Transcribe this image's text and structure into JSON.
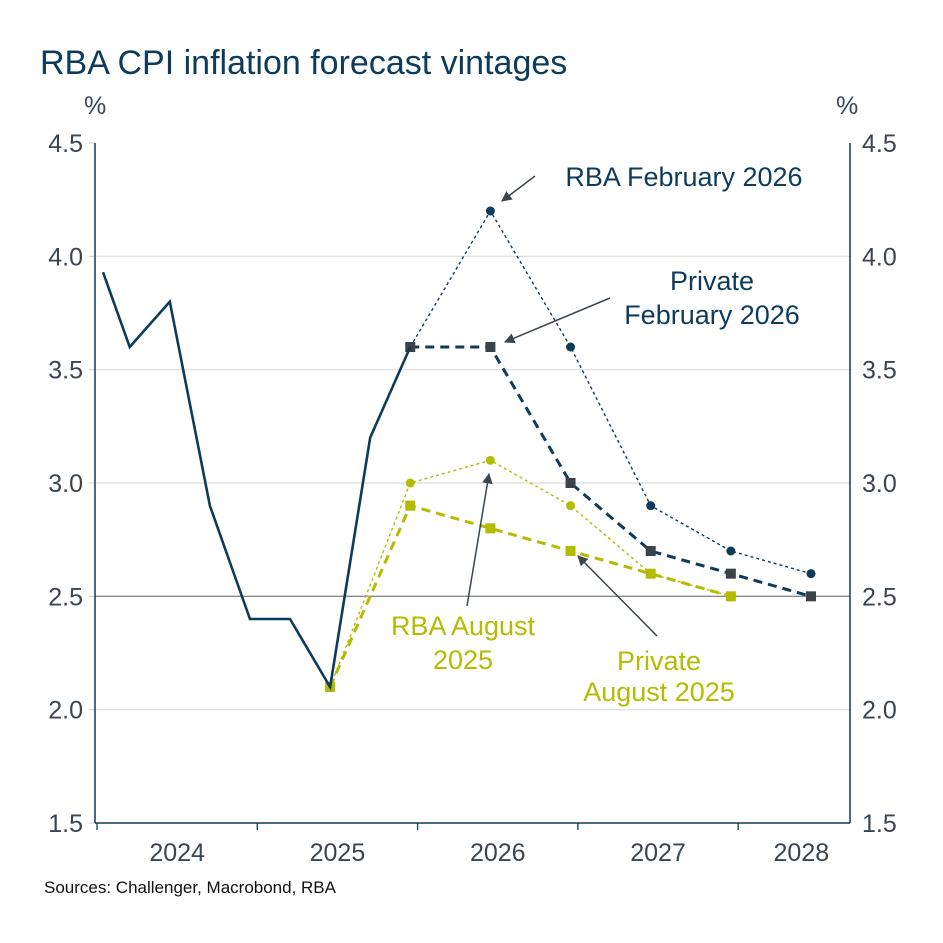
{
  "chart_data": {
    "type": "line",
    "title": "RBA CPI inflation forecast vintages",
    "ylabel_left": "%",
    "ylabel_right": "%",
    "source": "Sources: Challenger, Macrobond, RBA",
    "ylim": [
      1.5,
      4.5
    ],
    "yticks": [
      "1.5",
      "2.0",
      "2.5",
      "3.0",
      "3.5",
      "4.0",
      "4.5"
    ],
    "xticks": [
      "2024",
      "2025",
      "2026",
      "2027",
      "2028"
    ],
    "reference_line": 2.5,
    "grid": true,
    "colors": {
      "navy": "#0d3b5c",
      "lime": "#b3bc00",
      "marker_dark": "#3b4248",
      "arrow": "#3a4550"
    },
    "series": [
      {
        "name": "Actual",
        "style": "solid",
        "color": "#0d3b5c",
        "marker": "none",
        "x": [
          "2024-01",
          "2024-03",
          "2024-06",
          "2024-09",
          "2024-12",
          "2025-03",
          "2025-06",
          "2025-09",
          "2025-12"
        ],
        "y": [
          3.93,
          3.6,
          3.8,
          2.9,
          2.4,
          2.4,
          2.1,
          3.2,
          3.6
        ]
      },
      {
        "name": "RBA August 2025",
        "style": "dotted",
        "color": "#b3bc00",
        "marker": "circle",
        "x": [
          "2025-06",
          "2025-12",
          "2026-06",
          "2026-12",
          "2027-06",
          "2027-12"
        ],
        "y": [
          2.1,
          3.0,
          3.1,
          2.9,
          2.6,
          2.5
        ]
      },
      {
        "name": "Private August 2025",
        "style": "dashed",
        "color": "#b3bc00",
        "marker": "square",
        "x": [
          "2025-06",
          "2025-12",
          "2026-06",
          "2026-12",
          "2027-06",
          "2027-12"
        ],
        "y": [
          2.1,
          2.9,
          2.8,
          2.7,
          2.6,
          2.5
        ]
      },
      {
        "name": "RBA February 2026",
        "style": "dotted",
        "color": "#0d3b5c",
        "marker": "circle",
        "x": [
          "2025-12",
          "2026-06",
          "2026-12",
          "2027-06",
          "2027-12",
          "2028-06"
        ],
        "y": [
          3.6,
          4.2,
          3.6,
          2.9,
          2.7,
          2.6
        ]
      },
      {
        "name": "Private February 2026",
        "style": "dashed",
        "color": "#0d3b5c",
        "marker": "square",
        "x": [
          "2025-12",
          "2026-06",
          "2026-12",
          "2027-06",
          "2027-12",
          "2028-06"
        ],
        "y": [
          3.6,
          3.6,
          3.0,
          2.7,
          2.6,
          2.5
        ]
      }
    ],
    "annotations": [
      {
        "lines": [
          "RBA February 2026"
        ],
        "color": "#0d3b5c"
      },
      {
        "lines": [
          "Private",
          "February 2026"
        ],
        "color": "#0d3b5c"
      },
      {
        "lines": [
          "RBA August",
          "2025"
        ],
        "color": "#b3bc00"
      },
      {
        "lines": [
          "Private",
          "August 2025"
        ],
        "color": "#b3bc00"
      }
    ]
  }
}
